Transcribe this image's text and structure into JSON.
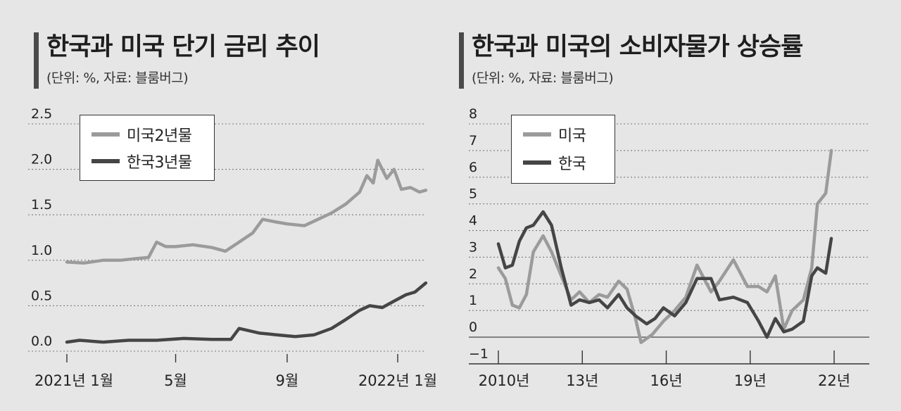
{
  "charts": [
    {
      "title": "한국과 미국 단기 금리 추이",
      "subtitle": "(단위: %, 자료: 블룸버그)"
    },
    {
      "title": "한국과 미국의 소비자물가 상승률",
      "subtitle": "(단위: %, 자료: 블룸버그)"
    }
  ],
  "colors": {
    "us": "#9b9b9b",
    "kr": "#454545",
    "grid": "#7a7a7a",
    "background": "#e6e6e6"
  },
  "chart_data": [
    {
      "type": "line",
      "title": "한국과 미국 단기 금리 추이",
      "xlabel": "",
      "ylabel": "",
      "x_tick_labels": [
        "2021년 1월",
        "5월",
        "9월",
        "2022년 1월"
      ],
      "x_ticks": [
        "2021-01",
        "2021-05",
        "2021-09",
        "2022-01"
      ],
      "y_tick_labels": [
        "0.0",
        "0.5",
        "1.0",
        "1.5",
        "2.0",
        "2.5"
      ],
      "ylim": [
        0,
        2.5
      ],
      "grid": "horizontal dotted",
      "legend_position": "top-left",
      "series": [
        {
          "name": "미국2년물",
          "color_key": "us",
          "points": [
            [
              "2021-01-01",
              0.98
            ],
            [
              "2021-01-20",
              0.97
            ],
            [
              "2021-02-10",
              1.0
            ],
            [
              "2021-03-01",
              1.0
            ],
            [
              "2021-03-20",
              1.02
            ],
            [
              "2021-04-01",
              1.03
            ],
            [
              "2021-04-10",
              1.2
            ],
            [
              "2021-04-20",
              1.15
            ],
            [
              "2021-05-01",
              1.15
            ],
            [
              "2021-05-20",
              1.17
            ],
            [
              "2021-06-10",
              1.14
            ],
            [
              "2021-06-25",
              1.1
            ],
            [
              "2021-07-10",
              1.2
            ],
            [
              "2021-07-25",
              1.3
            ],
            [
              "2021-08-05",
              1.45
            ],
            [
              "2021-08-20",
              1.42
            ],
            [
              "2021-09-01",
              1.4
            ],
            [
              "2021-09-20",
              1.38
            ],
            [
              "2021-10-05",
              1.45
            ],
            [
              "2021-10-20",
              1.52
            ],
            [
              "2021-11-05",
              1.62
            ],
            [
              "2021-11-20",
              1.75
            ],
            [
              "2021-11-28",
              1.93
            ],
            [
              "2021-12-05",
              1.85
            ],
            [
              "2021-12-10",
              2.1
            ],
            [
              "2021-12-20",
              1.9
            ],
            [
              "2021-12-28",
              2.0
            ],
            [
              "2022-01-05",
              1.78
            ],
            [
              "2022-01-15",
              1.8
            ],
            [
              "2022-01-25",
              1.75
            ],
            [
              "2022-02-01",
              1.77
            ]
          ]
        },
        {
          "name": "한국3년물",
          "color_key": "kr",
          "points": [
            [
              "2021-01-01",
              0.1
            ],
            [
              "2021-01-15",
              0.12
            ],
            [
              "2021-02-10",
              0.1
            ],
            [
              "2021-03-10",
              0.12
            ],
            [
              "2021-04-10",
              0.12
            ],
            [
              "2021-05-10",
              0.14
            ],
            [
              "2021-06-10",
              0.13
            ],
            [
              "2021-07-01",
              0.13
            ],
            [
              "2021-07-10",
              0.25
            ],
            [
              "2021-08-01",
              0.2
            ],
            [
              "2021-08-20",
              0.18
            ],
            [
              "2021-09-10",
              0.16
            ],
            [
              "2021-10-01",
              0.18
            ],
            [
              "2021-10-20",
              0.25
            ],
            [
              "2021-11-05",
              0.35
            ],
            [
              "2021-11-20",
              0.45
            ],
            [
              "2021-12-01",
              0.5
            ],
            [
              "2021-12-15",
              0.48
            ],
            [
              "2021-12-28",
              0.55
            ],
            [
              "2022-01-10",
              0.62
            ],
            [
              "2022-01-20",
              0.65
            ],
            [
              "2022-02-01",
              0.75
            ]
          ]
        }
      ]
    },
    {
      "type": "line",
      "title": "한국과 미국의 소비자물가 상승률",
      "xlabel": "",
      "ylabel": "",
      "x_tick_labels": [
        "2010년",
        "13년",
        "16년",
        "19년",
        "22년"
      ],
      "x_ticks": [
        2010,
        2013,
        2016,
        2019,
        2022
      ],
      "y_tick_labels": [
        "−1",
        "0",
        "1",
        "2",
        "3",
        "4",
        "5",
        "6",
        "7",
        "8"
      ],
      "ylim": [
        -1,
        8
      ],
      "grid": "horizontal dotted",
      "legend_position": "top-left",
      "series": [
        {
          "name": "미국",
          "color_key": "us",
          "points": [
            [
              2010.0,
              2.6
            ],
            [
              2010.25,
              2.2
            ],
            [
              2010.5,
              1.2
            ],
            [
              2010.75,
              1.1
            ],
            [
              2011.0,
              1.6
            ],
            [
              2011.25,
              3.2
            ],
            [
              2011.6,
              3.8
            ],
            [
              2011.9,
              3.2
            ],
            [
              2012.25,
              2.3
            ],
            [
              2012.6,
              1.4
            ],
            [
              2012.9,
              1.7
            ],
            [
              2013.25,
              1.3
            ],
            [
              2013.6,
              1.6
            ],
            [
              2013.9,
              1.5
            ],
            [
              2014.3,
              2.1
            ],
            [
              2014.6,
              1.8
            ],
            [
              2014.9,
              0.7
            ],
            [
              2015.1,
              -0.2
            ],
            [
              2015.5,
              0.1
            ],
            [
              2015.9,
              0.6
            ],
            [
              2016.3,
              1.0
            ],
            [
              2016.7,
              1.5
            ],
            [
              2017.1,
              2.7
            ],
            [
              2017.6,
              1.7
            ],
            [
              2017.9,
              2.1
            ],
            [
              2018.4,
              2.9
            ],
            [
              2018.9,
              1.9
            ],
            [
              2019.3,
              1.9
            ],
            [
              2019.6,
              1.7
            ],
            [
              2019.9,
              2.3
            ],
            [
              2020.2,
              0.3
            ],
            [
              2020.5,
              1.0
            ],
            [
              2020.9,
              1.4
            ],
            [
              2021.2,
              2.6
            ],
            [
              2021.4,
              5.0
            ],
            [
              2021.7,
              5.4
            ],
            [
              2021.9,
              7.0
            ]
          ]
        },
        {
          "name": "한국",
          "color_key": "kr",
          "points": [
            [
              2010.0,
              3.5
            ],
            [
              2010.25,
              2.6
            ],
            [
              2010.5,
              2.7
            ],
            [
              2010.75,
              3.6
            ],
            [
              2011.0,
              4.1
            ],
            [
              2011.25,
              4.2
            ],
            [
              2011.6,
              4.7
            ],
            [
              2011.9,
              4.2
            ],
            [
              2012.25,
              2.6
            ],
            [
              2012.6,
              1.2
            ],
            [
              2012.9,
              1.4
            ],
            [
              2013.25,
              1.3
            ],
            [
              2013.6,
              1.4
            ],
            [
              2013.9,
              1.1
            ],
            [
              2014.3,
              1.6
            ],
            [
              2014.6,
              1.1
            ],
            [
              2014.9,
              0.8
            ],
            [
              2015.3,
              0.5
            ],
            [
              2015.6,
              0.7
            ],
            [
              2015.9,
              1.1
            ],
            [
              2016.3,
              0.8
            ],
            [
              2016.7,
              1.3
            ],
            [
              2017.1,
              2.2
            ],
            [
              2017.6,
              2.2
            ],
            [
              2017.9,
              1.4
            ],
            [
              2018.4,
              1.5
            ],
            [
              2018.9,
              1.3
            ],
            [
              2019.3,
              0.6
            ],
            [
              2019.6,
              0.0
            ],
            [
              2019.9,
              0.7
            ],
            [
              2020.2,
              0.2
            ],
            [
              2020.5,
              0.3
            ],
            [
              2020.9,
              0.6
            ],
            [
              2021.2,
              2.3
            ],
            [
              2021.4,
              2.6
            ],
            [
              2021.7,
              2.4
            ],
            [
              2021.9,
              3.7
            ]
          ]
        }
      ]
    }
  ]
}
